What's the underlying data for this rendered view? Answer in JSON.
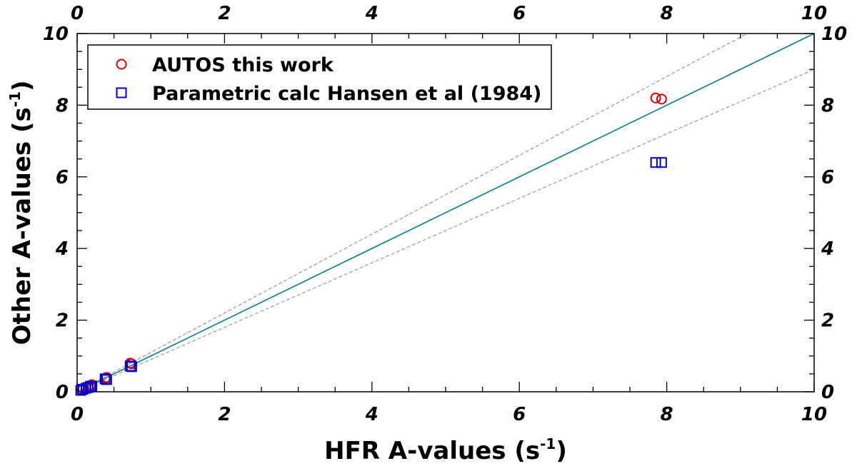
{
  "chart_data": {
    "type": "scatter",
    "title": "",
    "xlabel": "HFR A-values (s",
    "xlabel_sup": "-1",
    "xlabel_end": ")",
    "ylabel": "Other A-values (s",
    "ylabel_sup": "-1",
    "ylabel_end": ")",
    "xlim": [
      0,
      10
    ],
    "ylim": [
      0,
      10
    ],
    "x_ticks": [
      "0",
      "2",
      "4",
      "6",
      "8",
      "10"
    ],
    "y_ticks": [
      "0",
      "2",
      "4",
      "6",
      "8",
      "10"
    ],
    "grid": false,
    "legend_position": "top-left",
    "series": [
      {
        "name": "AUTOS this work",
        "marker": "circle",
        "color": "#dd0000",
        "points": [
          [
            0.05,
            0.05
          ],
          [
            0.08,
            0.08
          ],
          [
            0.12,
            0.12
          ],
          [
            0.15,
            0.14
          ],
          [
            0.18,
            0.17
          ],
          [
            0.2,
            0.2
          ],
          [
            0.38,
            0.38
          ],
          [
            0.4,
            0.4
          ],
          [
            0.72,
            0.8
          ],
          [
            0.74,
            0.78
          ],
          [
            7.85,
            8.2
          ],
          [
            7.93,
            8.17
          ]
        ]
      },
      {
        "name": "Parametric calc Hansen et al (1984)",
        "marker": "square",
        "color": "#0000cc",
        "points": [
          [
            0.05,
            0.04
          ],
          [
            0.08,
            0.07
          ],
          [
            0.12,
            0.1
          ],
          [
            0.15,
            0.12
          ],
          [
            0.18,
            0.15
          ],
          [
            0.2,
            0.16
          ],
          [
            0.38,
            0.36
          ],
          [
            0.4,
            0.34
          ],
          [
            0.72,
            0.72
          ],
          [
            0.74,
            0.7
          ],
          [
            7.85,
            6.4
          ],
          [
            7.93,
            6.4
          ]
        ]
      }
    ],
    "reference_lines": [
      {
        "slope": 1.0,
        "color": "#008080",
        "style": "solid"
      },
      {
        "slope": 1.1,
        "color": "#999999",
        "style": "dashed"
      },
      {
        "slope": 0.9,
        "color": "#999999",
        "style": "dashed"
      }
    ]
  }
}
